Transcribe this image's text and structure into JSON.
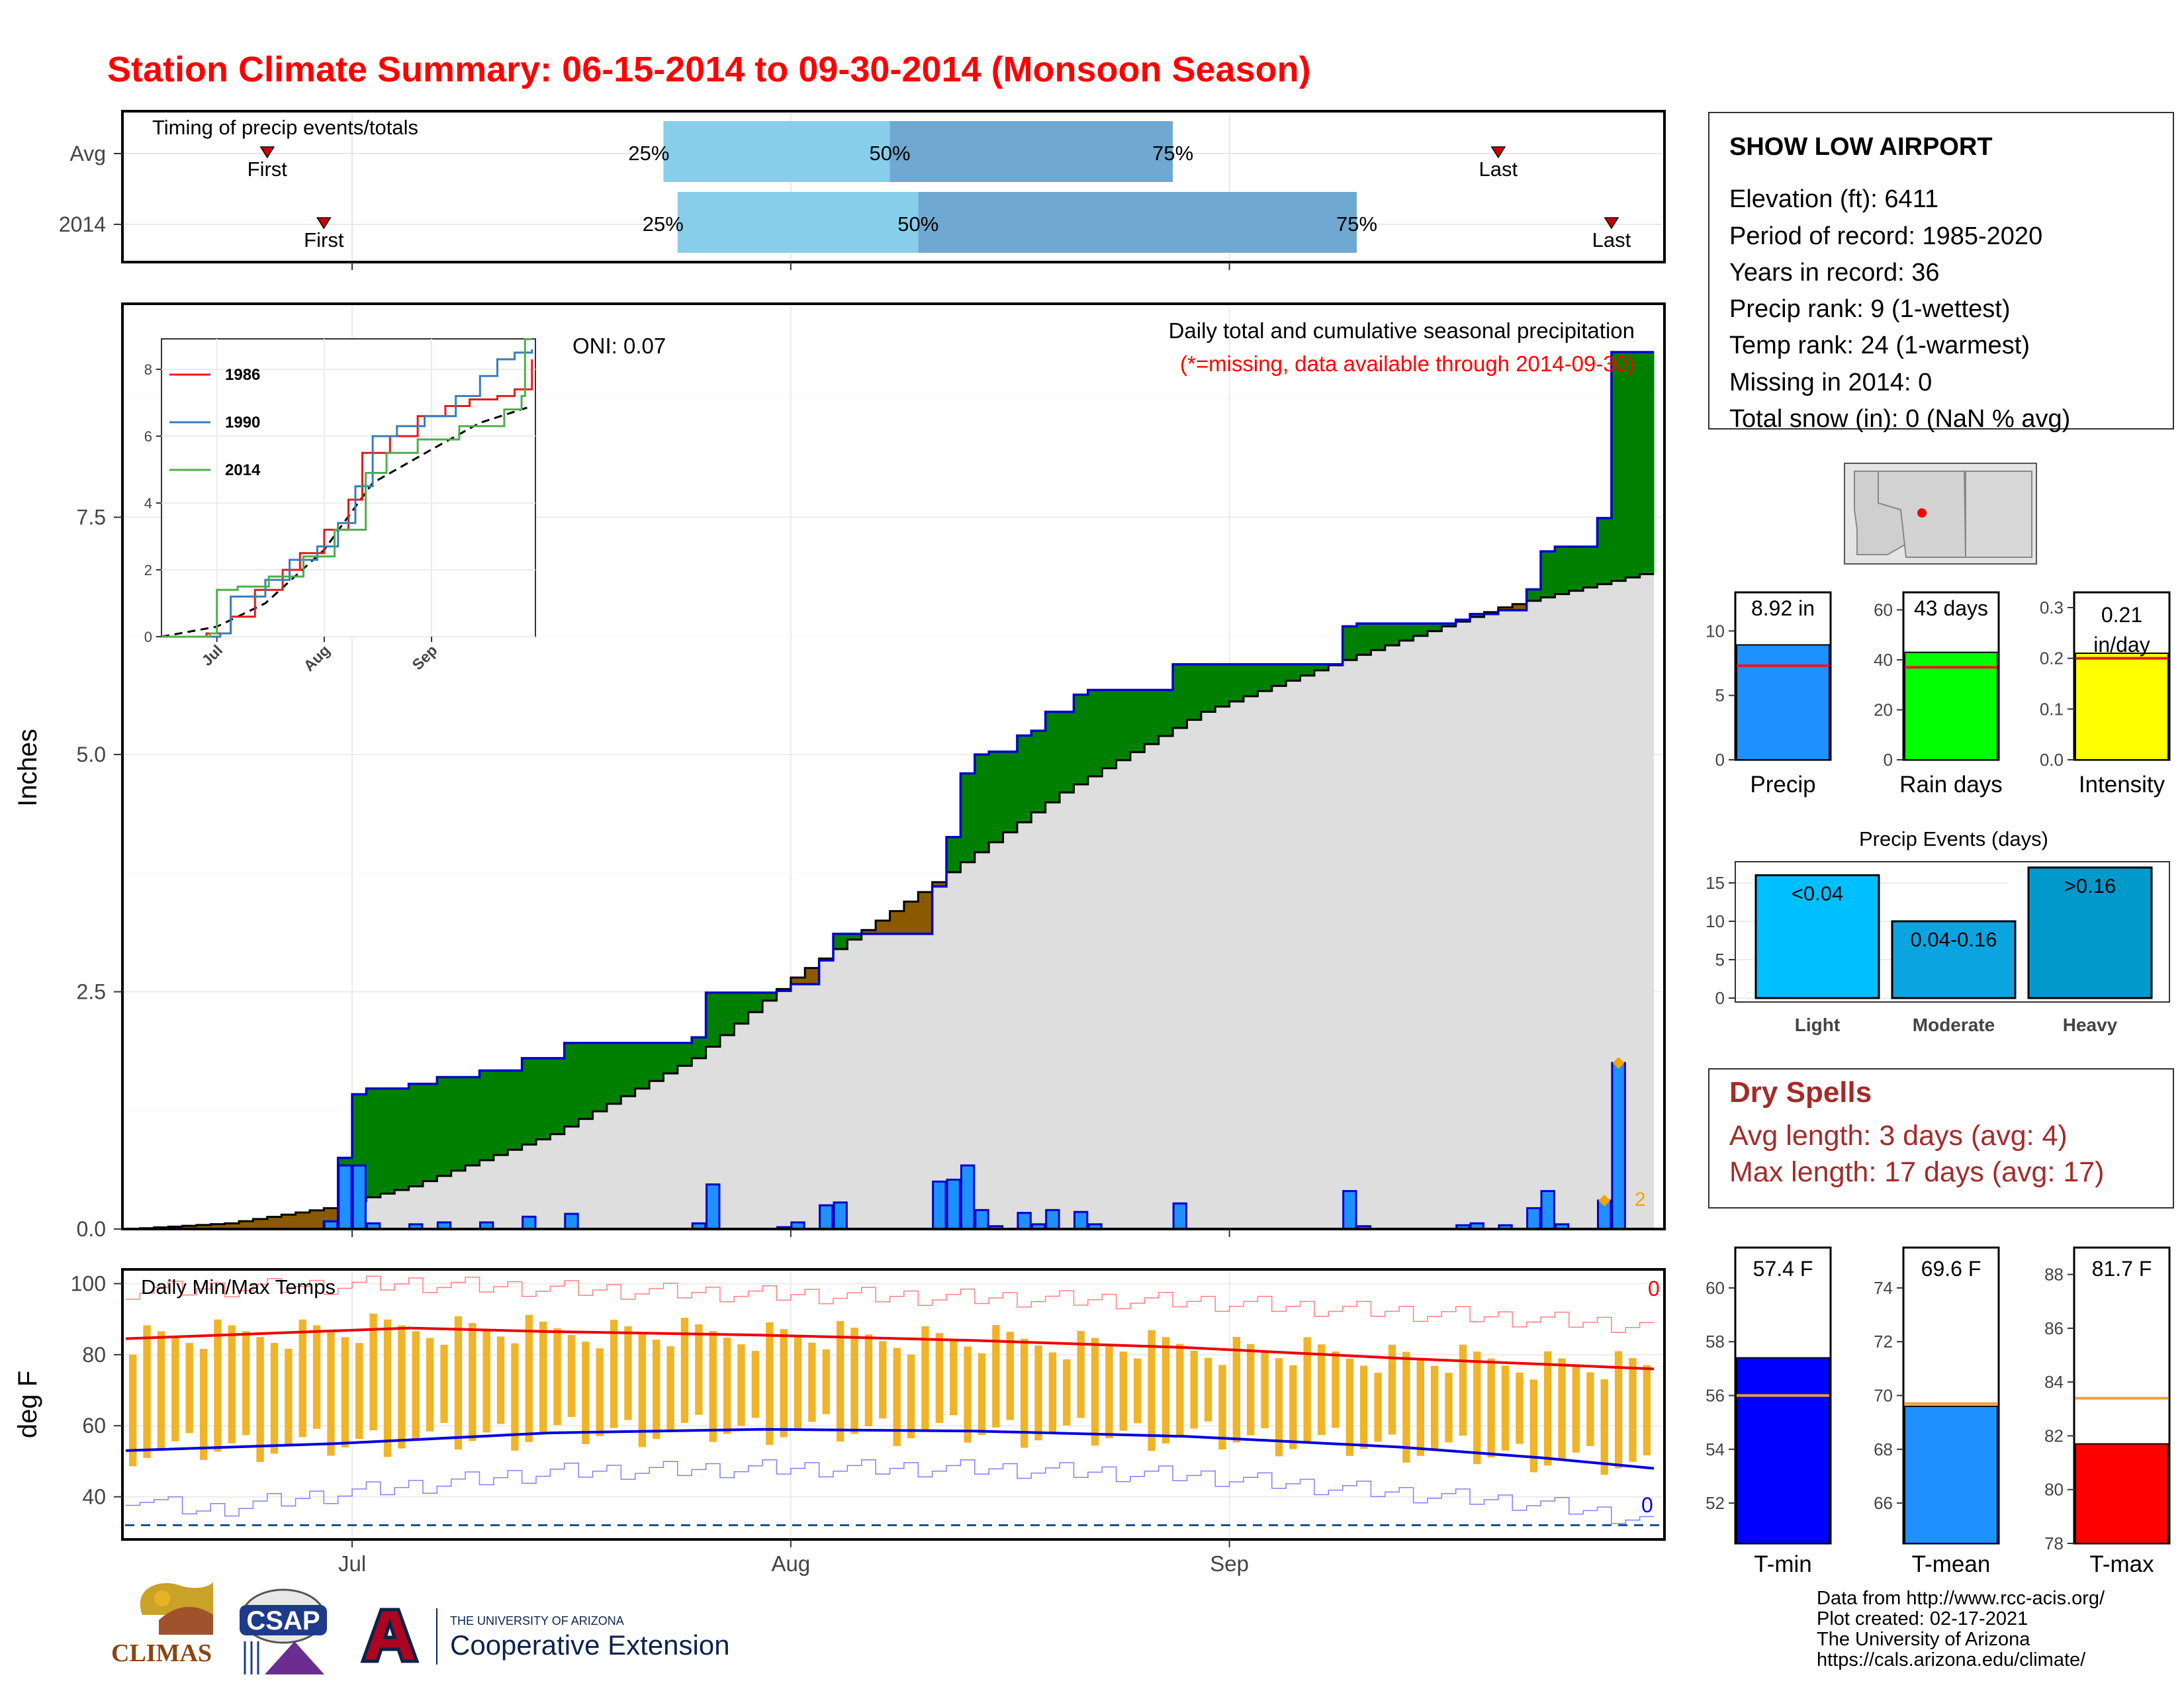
{
  "title": "Station Climate Summary: 06-15-2014 to 09-30-2014 (Monsoon Season)",
  "timing": {
    "label": "Timing of precip events/totals",
    "rows": [
      "Avg",
      "2014"
    ],
    "first_label": "First",
    "last_label": "Last",
    "pct_labels": [
      "25%",
      "50%",
      "75%"
    ],
    "avg": {
      "first": "2014-06-25",
      "q25": "2014-07-23",
      "q50": "2014-08-08",
      "q75": "2014-08-28",
      "last": "2014-09-20"
    },
    "y2014": {
      "first": "2014-06-29",
      "q25": "2014-07-24",
      "q50": "2014-08-10",
      "q75": "2014-09-10",
      "last": "2014-09-28"
    }
  },
  "station": {
    "name": "SHOW LOW AIRPORT",
    "lines": [
      "Elevation (ft): 6411",
      "Period of record: 1985-2020",
      "Years in record: 36",
      "Precip rank: 9 (1-wettest)",
      "Temp rank: 24 (1-warmest)",
      "Missing in 2014: 0",
      "Total snow (in): 0 (NaN % avg)"
    ]
  },
  "precip_panel": {
    "ylabel": "Inches",
    "oni": "ONI: 0.07",
    "caption": "Daily total and cumulative seasonal precipitation",
    "note": "(*=missing, data available through 2014-09-30)",
    "y_ticks": [
      "0.0",
      "2.5",
      "5.0",
      "7.5"
    ],
    "marker_label": "2",
    "x_ticks": [
      "Jul",
      "Aug",
      "Sep"
    ]
  },
  "inset": {
    "y_ticks": [
      "0",
      "2",
      "4",
      "6",
      "8"
    ],
    "x_ticks": [
      "Jul",
      "Aug",
      "Sep"
    ],
    "legend": [
      {
        "name": "1986",
        "color": "#e41a1c"
      },
      {
        "name": "1990",
        "color": "#377eb8"
      },
      {
        "name": "2014",
        "color": "#4daf4a"
      }
    ]
  },
  "summary_bars": [
    {
      "label": "Precip",
      "value_text": "8.92 in",
      "value": 8.92,
      "avg": 7.3,
      "ymax": 13,
      "ticks": [
        "0",
        "5",
        "10"
      ],
      "tick_vals": [
        0,
        5,
        10
      ],
      "color": "#1e90ff"
    },
    {
      "label": "Rain days",
      "value_text": "43 days",
      "value": 43,
      "avg": 37,
      "ymax": 67,
      "ticks": [
        "0",
        "20",
        "40",
        "60"
      ],
      "tick_vals": [
        0,
        20,
        40,
        60
      ],
      "color": "#00ff00"
    },
    {
      "label": "Intensity",
      "value_text": "0.21 in/day",
      "value": 0.21,
      "avg": 0.2,
      "ymax": 0.33,
      "ticks": [
        "0.0",
        "0.1",
        "0.2",
        "0.3"
      ],
      "tick_vals": [
        0,
        0.1,
        0.2,
        0.3
      ],
      "color": "#ffff00"
    }
  ],
  "events": {
    "title": "Precip Events (days)",
    "ticks": [
      "0",
      "5",
      "10",
      "15"
    ],
    "bars": [
      {
        "category": "Light",
        "label": "<0.04",
        "value": 16,
        "color": "#00bfff"
      },
      {
        "category": "Moderate",
        "label": "0.04-0.16",
        "value": 10,
        "color": "#0aa5e0"
      },
      {
        "category": "Heavy",
        "label": ">0.16",
        "value": 17,
        "color": "#0099cc"
      }
    ]
  },
  "dry_spells": {
    "title": "Dry Spells",
    "avg_line": "Avg length: 3 days (avg: 4)",
    "max_line": "Max length: 17 days (avg: 17)"
  },
  "temp_panel": {
    "ylabel": "deg F",
    "label": "Daily Min/Max Temps",
    "y_ticks": [
      "40",
      "60",
      "80",
      "100"
    ],
    "count_hi": "0",
    "count_lo": "0"
  },
  "temp_bars": [
    {
      "label": "T-min",
      "value_text": "57.4 F",
      "value": 57.4,
      "avg": 56.0,
      "ymin": 50.5,
      "ymax": 61.5,
      "ticks": [
        "52",
        "54",
        "56",
        "58",
        "60"
      ],
      "tick_vals": [
        52,
        54,
        56,
        58,
        60
      ],
      "color": "#0000ff"
    },
    {
      "label": "T-mean",
      "value_text": "69.6 F",
      "value": 69.6,
      "avg": 69.7,
      "ymin": 64.5,
      "ymax": 75.5,
      "ticks": [
        "66",
        "68",
        "70",
        "72",
        "74"
      ],
      "tick_vals": [
        66,
        68,
        70,
        72,
        74
      ],
      "color": "#1e90ff"
    },
    {
      "label": "T-max",
      "value_text": "81.7 F",
      "value": 81.7,
      "avg": 83.4,
      "ymin": 78,
      "ymax": 89,
      "ticks": [
        "78",
        "80",
        "82",
        "84",
        "86",
        "88"
      ],
      "tick_vals": [
        78,
        80,
        82,
        84,
        86,
        88
      ],
      "color": "#ff0000"
    }
  ],
  "footer": {
    "lines": [
      "Data from http://www.rcc-acis.org/",
      "Plot created: 02-17-2021",
      "The University of Arizona",
      "https://cals.arizona.edu/climate/"
    ],
    "logo_climas": "CLIMAS",
    "logo_csap": "CSAP",
    "logo_ua_small": "THE UNIVERSITY OF ARIZONA",
    "logo_ua_big": "Cooperative Extension"
  },
  "chart_data": {
    "type": "area",
    "start_date": "2014-06-15",
    "end_date": "2014-09-30",
    "ylim": [
      0,
      9.75
    ],
    "daily_precip": [
      {
        "date": "2014-06-29",
        "value": 0.08
      },
      {
        "date": "2014-06-30",
        "value": 0.67
      },
      {
        "date": "2014-07-01",
        "value": 0.67
      },
      {
        "date": "2014-07-02",
        "value": 0.06
      },
      {
        "date": "2014-07-05",
        "value": 0.05
      },
      {
        "date": "2014-07-07",
        "value": 0.07
      },
      {
        "date": "2014-07-10",
        "value": 0.07
      },
      {
        "date": "2014-07-13",
        "value": 0.13
      },
      {
        "date": "2014-07-16",
        "value": 0.16
      },
      {
        "date": "2014-07-25",
        "value": 0.06
      },
      {
        "date": "2014-07-26",
        "value": 0.47
      },
      {
        "date": "2014-07-31",
        "value": 0.02
      },
      {
        "date": "2014-08-01",
        "value": 0.07
      },
      {
        "date": "2014-08-03",
        "value": 0.25
      },
      {
        "date": "2014-08-04",
        "value": 0.28
      },
      {
        "date": "2014-08-11",
        "value": 0.5
      },
      {
        "date": "2014-08-12",
        "value": 0.52
      },
      {
        "date": "2014-08-13",
        "value": 0.67
      },
      {
        "date": "2014-08-14",
        "value": 0.2
      },
      {
        "date": "2014-08-15",
        "value": 0.03
      },
      {
        "date": "2014-08-17",
        "value": 0.17
      },
      {
        "date": "2014-08-18",
        "value": 0.05
      },
      {
        "date": "2014-08-19",
        "value": 0.2
      },
      {
        "date": "2014-08-21",
        "value": 0.18
      },
      {
        "date": "2014-08-22",
        "value": 0.05
      },
      {
        "date": "2014-08-28",
        "value": 0.27
      },
      {
        "date": "2014-09-09",
        "value": 0.4
      },
      {
        "date": "2014-09-10",
        "value": 0.03
      },
      {
        "date": "2014-09-17",
        "value": 0.04
      },
      {
        "date": "2014-09-18",
        "value": 0.06
      },
      {
        "date": "2014-09-20",
        "value": 0.04
      },
      {
        "date": "2014-09-22",
        "value": 0.22
      },
      {
        "date": "2014-09-23",
        "value": 0.4
      },
      {
        "date": "2014-09-24",
        "value": 0.05
      },
      {
        "date": "2014-09-27",
        "value": 0.3
      },
      {
        "date": "2014-09-28",
        "value": 1.75
      }
    ],
    "avg_cumulative": [
      {
        "date": "2014-06-15",
        "value": 0.0
      },
      {
        "date": "2014-06-22",
        "value": 0.06
      },
      {
        "date": "2014-06-29",
        "value": 0.22
      },
      {
        "date": "2014-07-05",
        "value": 0.45
      },
      {
        "date": "2014-07-15",
        "value": 1.0
      },
      {
        "date": "2014-07-25",
        "value": 1.8
      },
      {
        "date": "2014-08-01",
        "value": 2.65
      },
      {
        "date": "2014-08-10",
        "value": 3.55
      },
      {
        "date": "2014-08-20",
        "value": 4.6
      },
      {
        "date": "2014-08-30",
        "value": 5.45
      },
      {
        "date": "2014-09-10",
        "value": 6.05
      },
      {
        "date": "2014-09-20",
        "value": 6.55
      },
      {
        "date": "2014-09-30",
        "value": 6.9
      }
    ],
    "marker_points": [
      {
        "date": "2014-09-27",
        "value": 0.3
      },
      {
        "date": "2014-09-28",
        "value": 1.75
      }
    ],
    "inset_series": [
      {
        "name": "1986",
        "points": [
          [
            "2014-06-15",
            0
          ],
          [
            "2014-06-28",
            0.1
          ],
          [
            "2014-07-05",
            0.6
          ],
          [
            "2014-07-12",
            1.4
          ],
          [
            "2014-07-20",
            2.0
          ],
          [
            "2014-07-25",
            2.5
          ],
          [
            "2014-08-01",
            3.2
          ],
          [
            "2014-08-08",
            4.1
          ],
          [
            "2014-08-12",
            5.5
          ],
          [
            "2014-08-20",
            6.0
          ],
          [
            "2014-08-28",
            6.6
          ],
          [
            "2014-09-05",
            6.9
          ],
          [
            "2014-09-12",
            7.1
          ],
          [
            "2014-09-20",
            7.2
          ],
          [
            "2014-09-25",
            7.4
          ],
          [
            "2014-09-30",
            8.3
          ]
        ]
      },
      {
        "name": "1990",
        "points": [
          [
            "2014-06-15",
            0
          ],
          [
            "2014-07-02",
            0.1
          ],
          [
            "2014-07-05",
            1.2
          ],
          [
            "2014-07-15",
            1.7
          ],
          [
            "2014-07-22",
            2.3
          ],
          [
            "2014-07-30",
            2.7
          ],
          [
            "2014-08-05",
            3.4
          ],
          [
            "2014-08-10",
            4.5
          ],
          [
            "2014-08-15",
            6.0
          ],
          [
            "2014-08-22",
            6.3
          ],
          [
            "2014-08-30",
            6.6
          ],
          [
            "2014-09-08",
            7.2
          ],
          [
            "2014-09-15",
            7.8
          ],
          [
            "2014-09-20",
            8.3
          ],
          [
            "2014-09-25",
            8.5
          ],
          [
            "2014-09-30",
            8.6
          ]
        ]
      },
      {
        "name": "2014",
        "points": [
          [
            "2014-06-15",
            0
          ],
          [
            "2014-06-29",
            0.1
          ],
          [
            "2014-07-01",
            1.4
          ],
          [
            "2014-07-07",
            1.5
          ],
          [
            "2014-07-16",
            1.8
          ],
          [
            "2014-07-26",
            2.4
          ],
          [
            "2014-08-04",
            3.2
          ],
          [
            "2014-08-13",
            4.9
          ],
          [
            "2014-08-19",
            5.5
          ],
          [
            "2014-08-28",
            5.9
          ],
          [
            "2014-09-09",
            6.3
          ],
          [
            "2014-09-22",
            6.8
          ],
          [
            "2014-09-27",
            7.2
          ],
          [
            "2014-09-28",
            8.9
          ],
          [
            "2014-09-30",
            8.9
          ]
        ]
      }
    ],
    "inset_avg": [
      [
        "2014-06-15",
        0
      ],
      [
        "2014-07-01",
        0.3
      ],
      [
        "2014-07-15",
        1.0
      ],
      [
        "2014-08-01",
        2.6
      ],
      [
        "2014-08-15",
        4.6
      ],
      [
        "2014-09-01",
        5.6
      ],
      [
        "2014-09-15",
        6.4
      ],
      [
        "2014-09-30",
        6.9
      ]
    ],
    "temp_ylim": [
      28,
      104
    ],
    "tmax_normal": [
      [
        0,
        84.5
      ],
      [
        10,
        86
      ],
      [
        20,
        87.5
      ],
      [
        30,
        86.5
      ],
      [
        45,
        85.5
      ],
      [
        60,
        84
      ],
      [
        75,
        82
      ],
      [
        90,
        79
      ],
      [
        108,
        76
      ]
    ],
    "tmin_normal": [
      [
        0,
        53
      ],
      [
        15,
        55
      ],
      [
        30,
        58
      ],
      [
        45,
        59
      ],
      [
        60,
        58.5
      ],
      [
        75,
        57
      ],
      [
        90,
        54
      ],
      [
        100,
        51
      ],
      [
        108,
        48
      ]
    ],
    "record_high": [
      [
        0,
        98
      ],
      [
        10,
        99
      ],
      [
        20,
        100
      ],
      [
        30,
        98.5
      ],
      [
        45,
        97
      ],
      [
        60,
        96
      ],
      [
        75,
        95
      ],
      [
        90,
        92
      ],
      [
        108,
        88
      ]
    ],
    "record_low": [
      [
        0,
        40
      ],
      [
        5,
        36
      ],
      [
        15,
        41
      ],
      [
        30,
        47
      ],
      [
        45,
        48
      ],
      [
        60,
        48
      ],
      [
        75,
        46
      ],
      [
        90,
        41
      ],
      [
        100,
        38
      ],
      [
        108,
        33
      ]
    ],
    "freeze_line": 32
  }
}
